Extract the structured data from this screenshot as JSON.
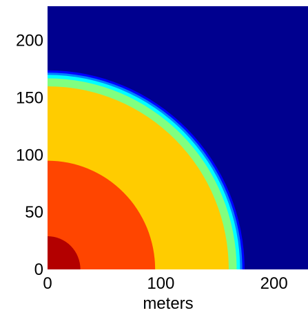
{
  "chart_data": {
    "type": "contour",
    "title": "",
    "xlabel": "meters",
    "ylabel": "",
    "xlim": [
      0,
      230
    ],
    "ylim": [
      0,
      230
    ],
    "xticks": [
      {
        "value": 0,
        "label": "0"
      },
      {
        "value": 100,
        "label": "100"
      },
      {
        "value": 200,
        "label": "200"
      }
    ],
    "yticks": [
      {
        "value": 0,
        "label": "0"
      },
      {
        "value": 50,
        "label": "50"
      },
      {
        "value": 100,
        "label": "100"
      },
      {
        "value": 150,
        "label": "150"
      },
      {
        "value": 200,
        "label": "200"
      }
    ],
    "background_color": "#00008F",
    "grid": false,
    "contour_levels": [
      {
        "level": 1,
        "radius": 174,
        "color": "#0000FF"
      },
      {
        "level": 2,
        "radius": 172,
        "color": "#0080FF"
      },
      {
        "level": 3,
        "radius": 170,
        "color": "#00FFFF"
      },
      {
        "level": 4,
        "radius": 167,
        "color": "#80FF80"
      },
      {
        "level": 5,
        "radius": 160,
        "color": "#FFCC00"
      },
      {
        "level": 6,
        "radius": 95,
        "color": "#FF4500"
      },
      {
        "level": 7,
        "radius": 29,
        "color": "#B30000"
      }
    ]
  }
}
